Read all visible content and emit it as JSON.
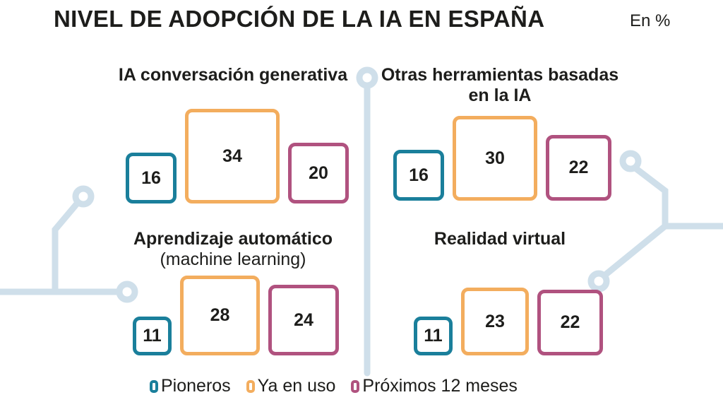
{
  "header": {
    "title": "NIVEL DE ADOPCIÓN DE LA IA EN ESPAÑA",
    "unit": "En %"
  },
  "colors": {
    "Pioneros": "#1a7f9b",
    "Ya en uso": "#f3ad5e",
    "Próximos 12 meses": "#b0527f",
    "circuit": "#cfdfea"
  },
  "chart_data": {
    "type": "proportional-squares",
    "unit": "En %",
    "series": [
      "Pioneros",
      "Ya en uso",
      "Próximos 12 meses"
    ],
    "groups": [
      {
        "title": "IA conversación generativa",
        "subtitle": "",
        "values": [
          16,
          34,
          20
        ]
      },
      {
        "title": "Otras herramientas basadas en la IA",
        "subtitle": "",
        "values": [
          16,
          30,
          22
        ]
      },
      {
        "title": "Aprendizaje automático",
        "subtitle": "(machine learning)",
        "values": [
          11,
          28,
          24
        ]
      },
      {
        "title": "Realidad virtual",
        "subtitle": "",
        "values": [
          11,
          23,
          22
        ]
      }
    ],
    "legend_position": "bottom"
  }
}
